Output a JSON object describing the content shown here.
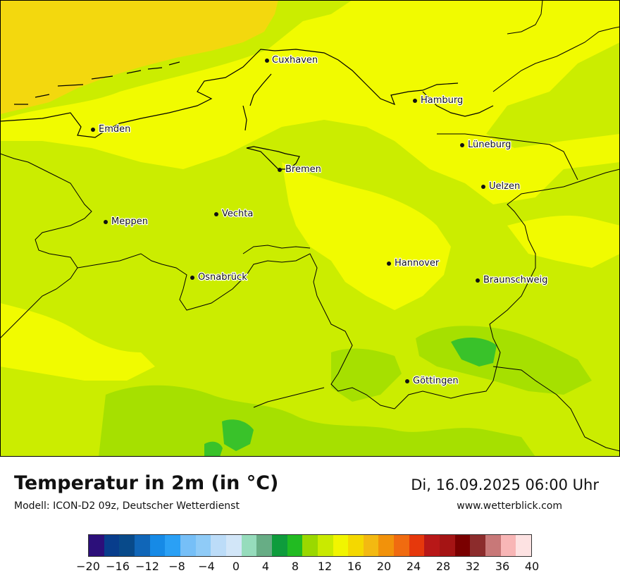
{
  "map": {
    "cities": [
      {
        "name": "Cuxhaven"
      },
      {
        "name": "Hamburg"
      },
      {
        "name": "Emden"
      },
      {
        "name": "Lüneburg"
      },
      {
        "name": "Bremen"
      },
      {
        "name": "Uelzen"
      },
      {
        "name": "Vechta"
      },
      {
        "name": "Meppen"
      },
      {
        "name": "Hannover"
      },
      {
        "name": "Osnabrück"
      },
      {
        "name": "Braunschweig"
      },
      {
        "name": "Göttingen"
      }
    ]
  },
  "footer": {
    "title": "Temperatur in 2m (in °C)",
    "model": "Modell: ICON-D2 09z, Deutscher Wetterdienst",
    "datetime": "Di, 16.09.2025 06:00 Uhr",
    "website": "www.wetterblick.com"
  },
  "legend": {
    "colors": [
      "#2c0f7a",
      "#083d8c",
      "#084a8a",
      "#1066b8",
      "#168ae6",
      "#2aa0f5",
      "#76bff7",
      "#8fcbf7",
      "#bcdcf8",
      "#d2e6f8",
      "#96dcbc",
      "#67ad85",
      "#0e9c3c",
      "#22bb22",
      "#9ad800",
      "#c9ea00",
      "#f1f500",
      "#f4d800",
      "#f3b911",
      "#f2920a",
      "#f06b10",
      "#e6380c",
      "#b81818",
      "#a51414",
      "#7a0000",
      "#8c2c2c",
      "#c87878",
      "#f8b6b6",
      "#fde2e2"
    ],
    "tick_labels": [
      "−20",
      "−16",
      "−12",
      "−8",
      "−4",
      "0",
      "4",
      "8",
      "12",
      "16",
      "20",
      "24",
      "28",
      "32",
      "36",
      "40"
    ]
  }
}
